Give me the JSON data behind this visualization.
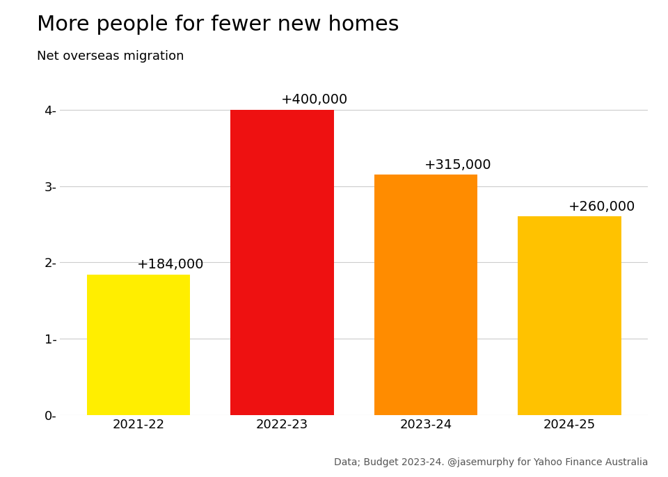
{
  "title": "More people for fewer new homes",
  "subtitle": "Net overseas migration",
  "categories": [
    "2021-22",
    "2022-23",
    "2023-24",
    "2024-25"
  ],
  "values": [
    1.84,
    4.0,
    3.15,
    2.6
  ],
  "labels": [
    "+184,000",
    "+400,000",
    "+315,000",
    "+260,000"
  ],
  "bar_colors": [
    "#FFEE00",
    "#EE1111",
    "#FF8C00",
    "#FFC200"
  ],
  "ylim": [
    0,
    4.5
  ],
  "yticks": [
    0,
    1,
    2,
    3,
    4
  ],
  "ytick_labels": [
    "0-",
    "1-",
    "2-",
    "3-",
    "4-"
  ],
  "source_text": "Data; Budget 2023-24. @jasemurphy for Yahoo Finance Australia",
  "title_fontsize": 22,
  "subtitle_fontsize": 13,
  "label_fontsize": 14,
  "tick_fontsize": 13,
  "source_fontsize": 10,
  "background_color": "#FFFFFF"
}
